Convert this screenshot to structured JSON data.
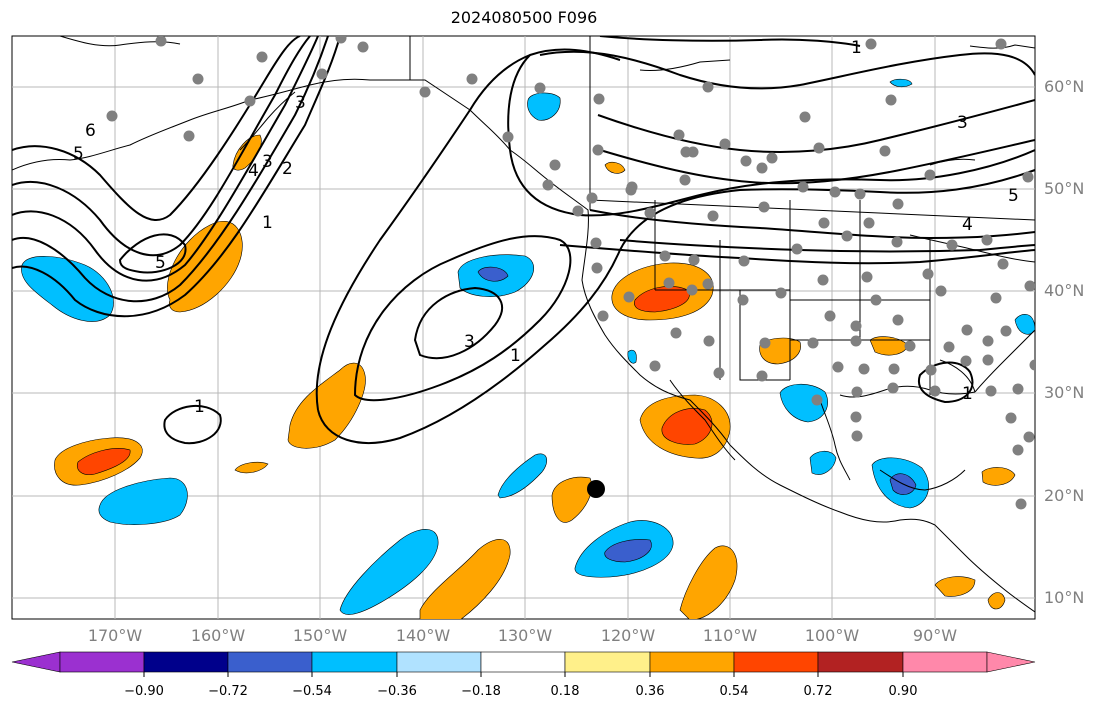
{
  "title": "2024080500 F096",
  "lat_labels": [
    "60°N",
    "50°N",
    "40°N",
    "30°N",
    "20°N",
    "10°N"
  ],
  "lon_labels": [
    "170°W",
    "160°W",
    "150°W",
    "140°W",
    "130°W",
    "120°W",
    "110°W",
    "100°W",
    "90°W"
  ],
  "contour_labels": [
    "1",
    "1",
    "1",
    "3",
    "3",
    "5",
    "5",
    "6",
    "4",
    "3",
    "2",
    "1",
    "1",
    "3",
    "5",
    "4"
  ],
  "colorbar": {
    "ticks": [
      "−0.90",
      "−0.72",
      "−0.54",
      "−0.36",
      "−0.18",
      "0.18",
      "0.36",
      "0.54",
      "0.72",
      "0.90"
    ],
    "colors": [
      "#9b30d0",
      "#00008b",
      "#3a5fcd",
      "#00bfff",
      "#b0e2ff",
      "#ffffff",
      "#fff08a",
      "#ffa500",
      "#ff4500",
      "#b22222",
      "#ff88aa"
    ]
  },
  "colors": {
    "positive_1": "#ffa500",
    "positive_2": "#ff4500",
    "negative_1": "#00bfff",
    "negative_2": "#3a5fcd",
    "station_dot": "#808080",
    "marker": "#000000",
    "grid": "#b0b0b0"
  }
}
